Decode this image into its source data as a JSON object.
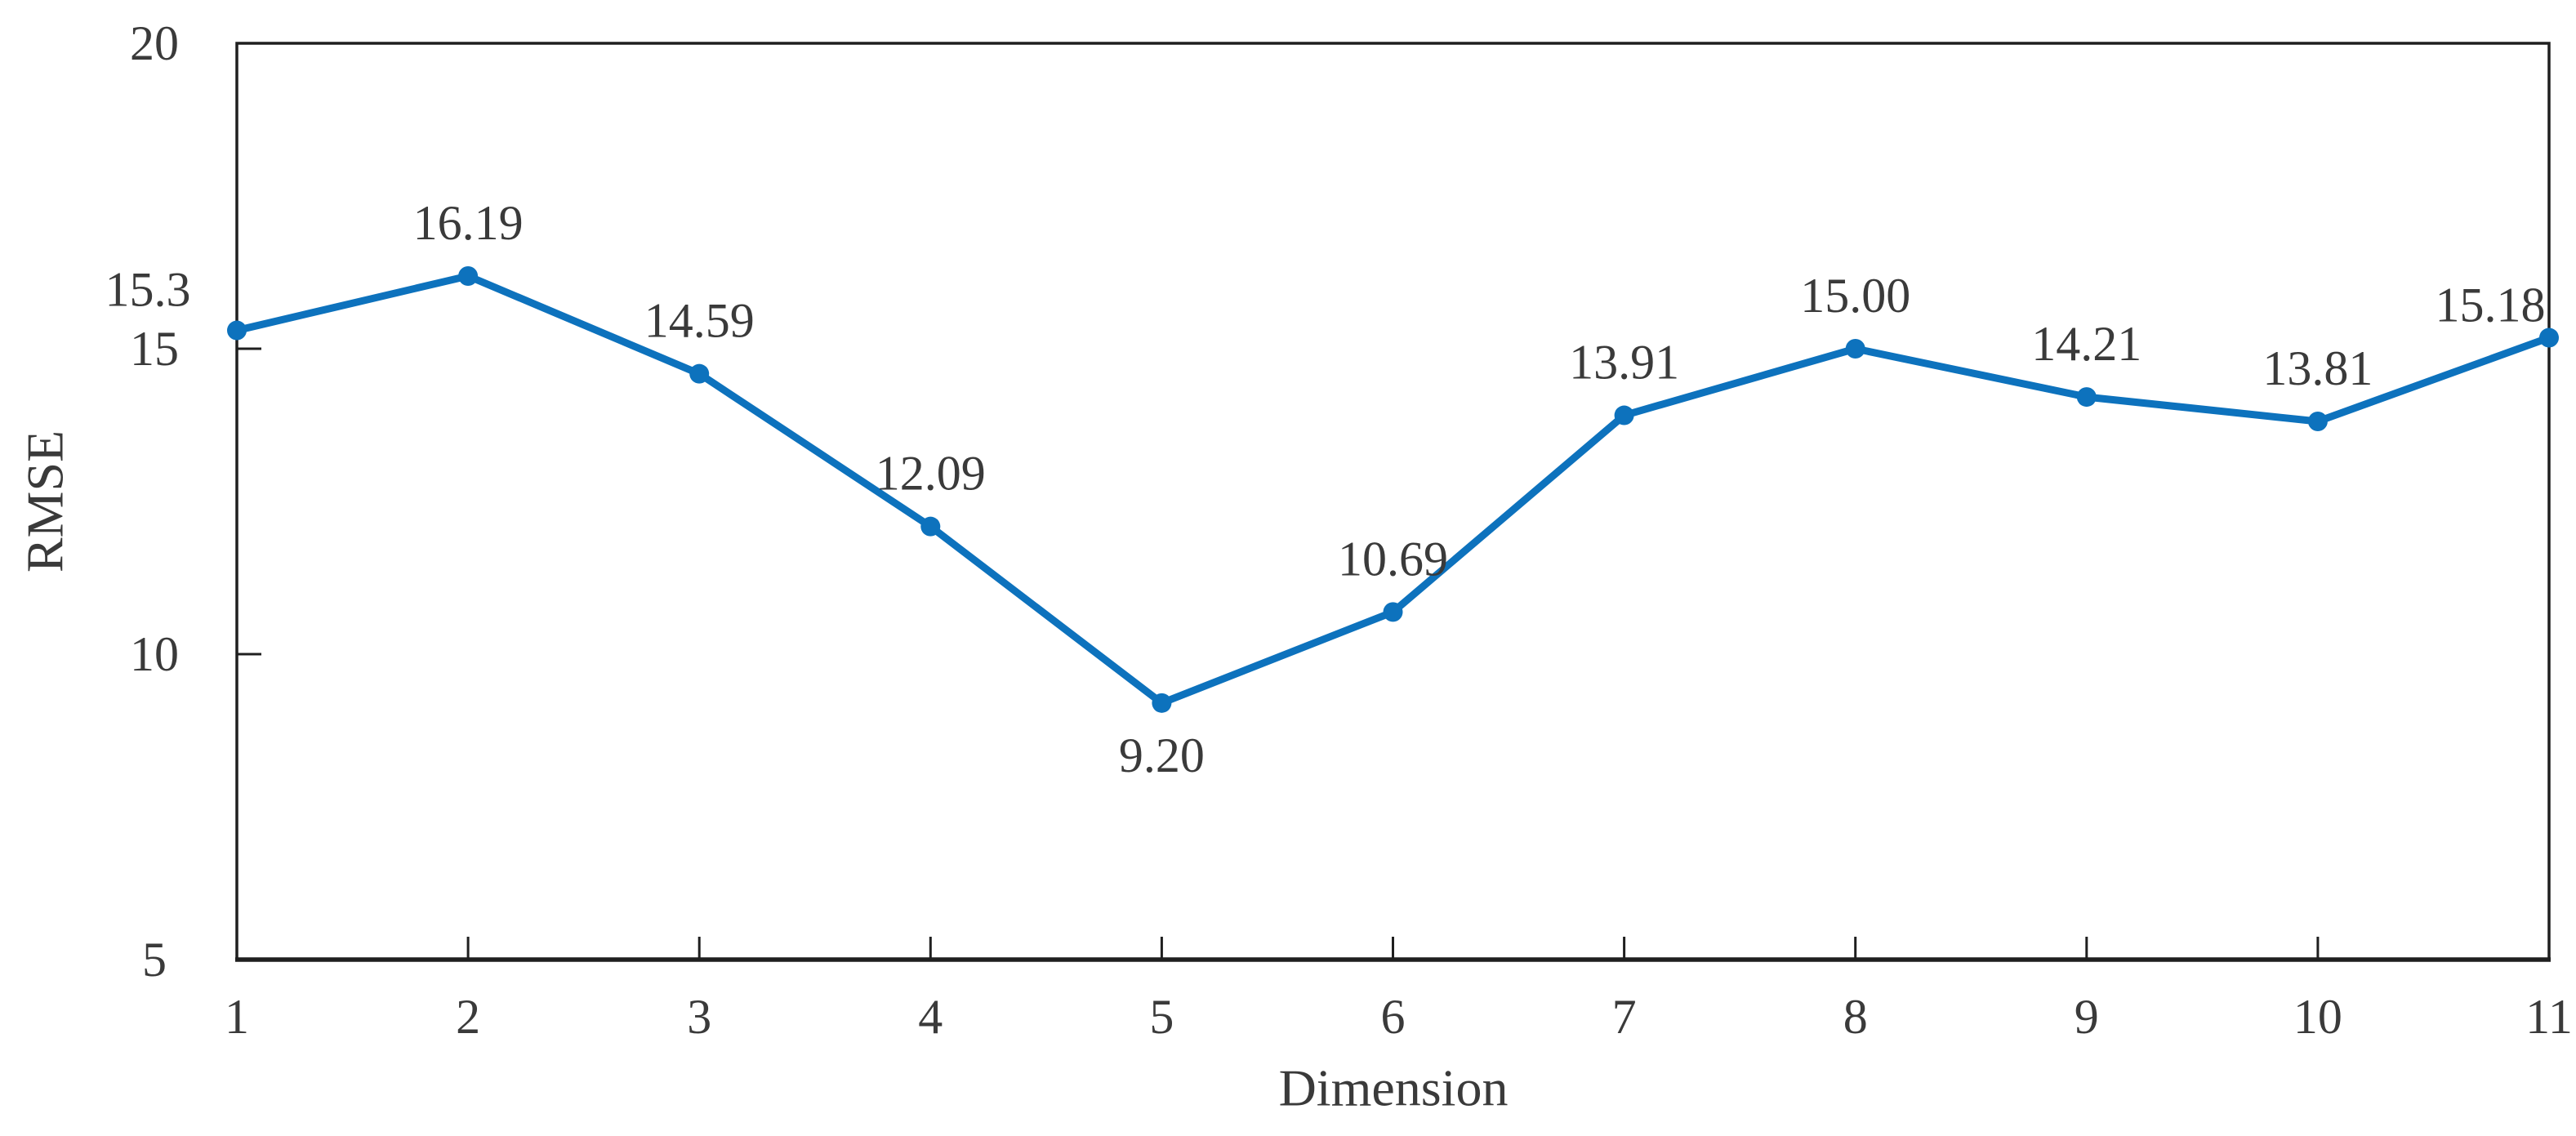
{
  "chart_data": {
    "type": "line",
    "title": "",
    "xlabel": "Dimension",
    "ylabel": "RMSE",
    "categories": [
      "1",
      "2",
      "3",
      "4",
      "5",
      "6",
      "7",
      "8",
      "9",
      "10",
      "11"
    ],
    "series": [
      {
        "name": "RMSE",
        "values": [
          15.3,
          16.19,
          14.59,
          12.09,
          9.2,
          10.69,
          13.91,
          15.0,
          14.21,
          13.81,
          15.18
        ],
        "color": "#0d72bd"
      }
    ],
    "data_labels": [
      "15.3",
      "16.19",
      "14.59",
      "12.09",
      "9.20",
      "10.69",
      "13.91",
      "15.00",
      "14.21",
      "13.81",
      "15.18"
    ],
    "label_placement": [
      "left",
      "above",
      "above",
      "above",
      "below",
      "above",
      "above",
      "above",
      "above",
      "above",
      "above-left"
    ],
    "ylim": [
      5,
      20
    ],
    "yticks": [
      "5",
      "10",
      "15",
      "20"
    ],
    "grid": false,
    "legend": "none",
    "marker": "circle",
    "plot_border": true,
    "tick_direction": "inside"
  },
  "colors": {
    "series_blue": "#0d72bd",
    "text_gray": "#3a3a3a",
    "axis_black": "#1f1f1f",
    "background": "#ffffff"
  }
}
